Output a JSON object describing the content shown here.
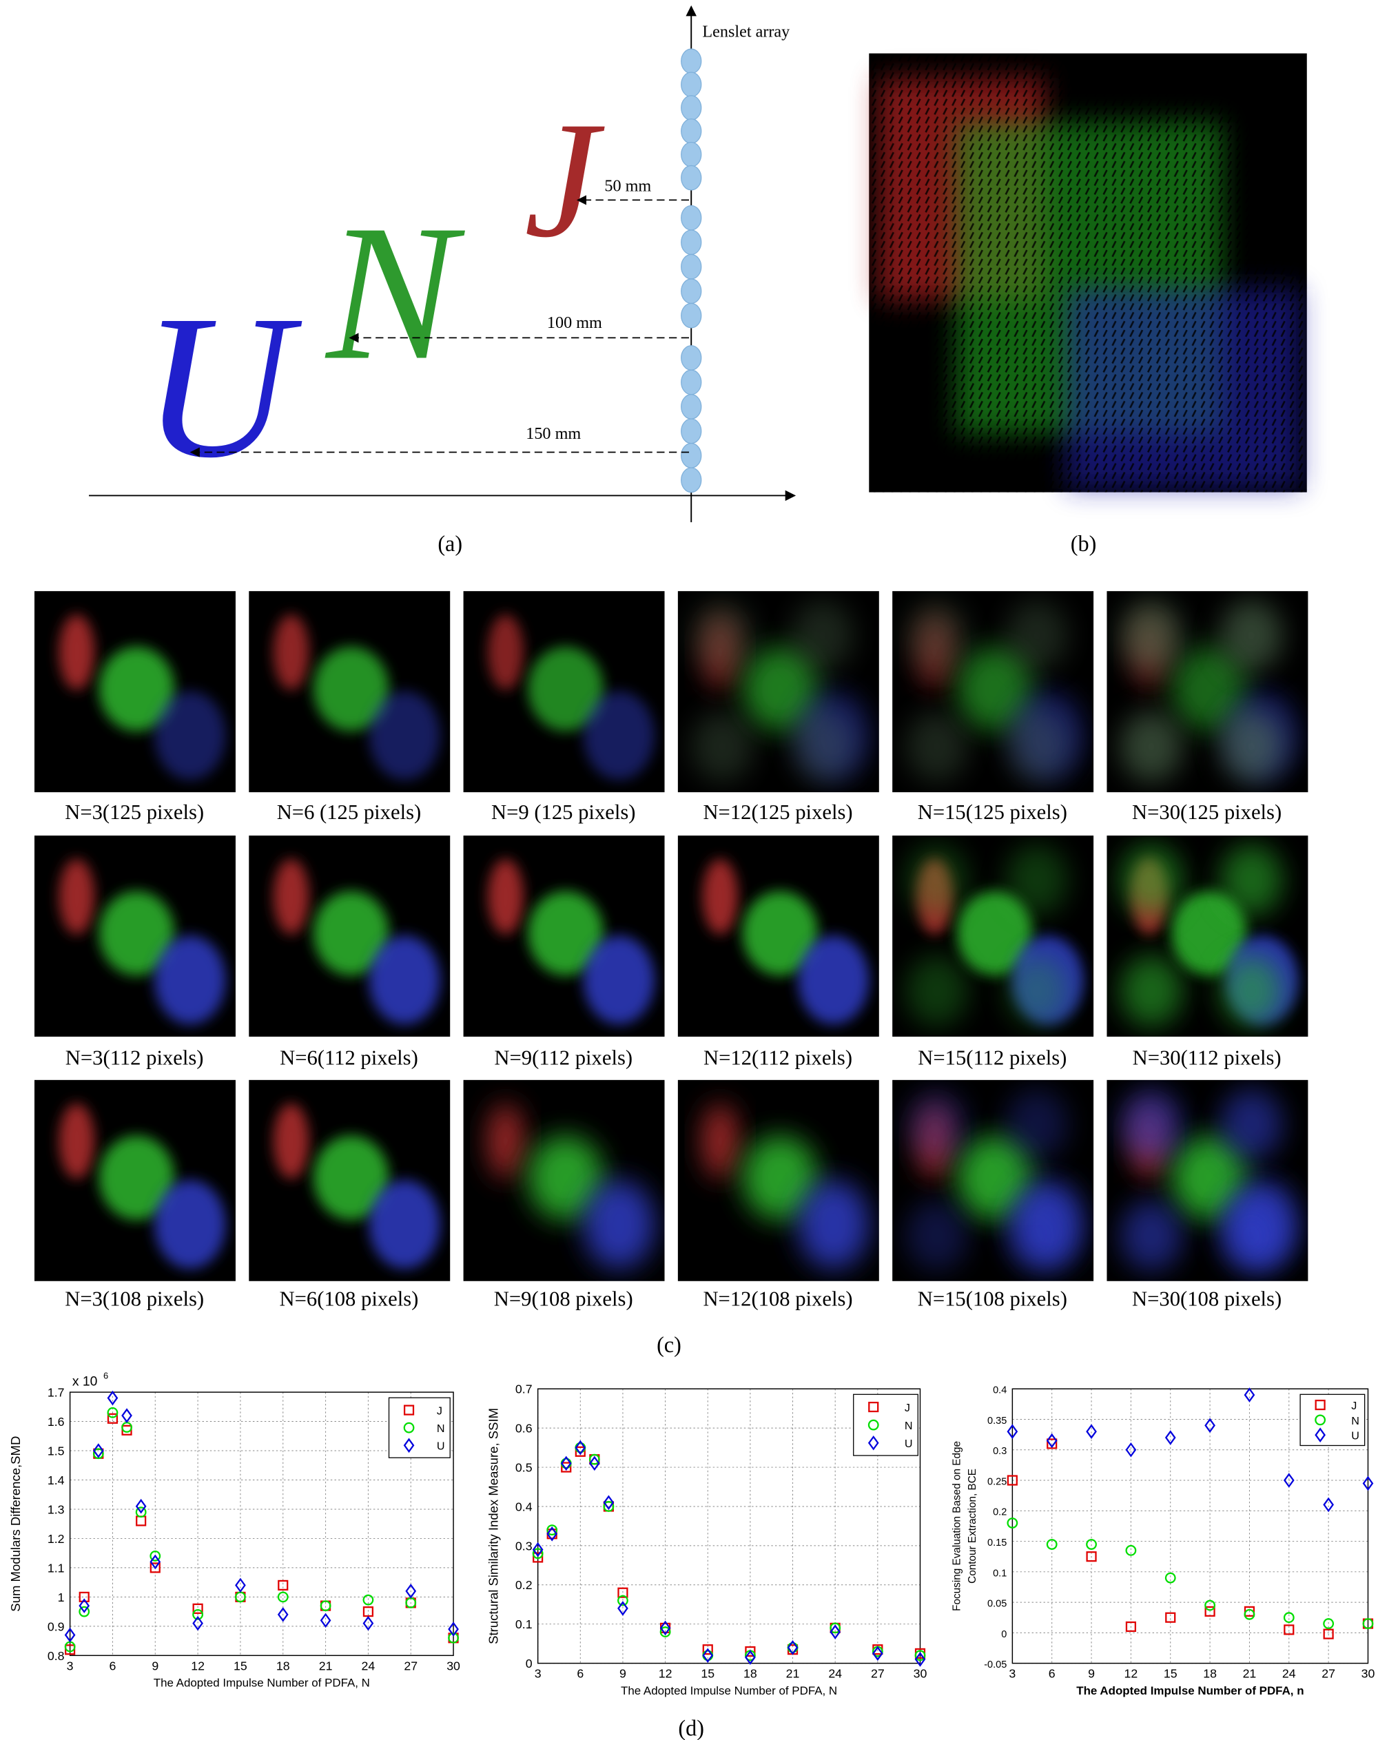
{
  "panel_a": {
    "axis_label": "Lenslet array",
    "letters": [
      "J",
      "N",
      "U"
    ],
    "distances": [
      "50 mm",
      "100 mm",
      "150 mm"
    ]
  },
  "panel_labels": [
    "(a)",
    "(b)",
    "(c)",
    "(d)"
  ],
  "panel_c": {
    "captions": [
      [
        "N=3(125 pixels)",
        "N=6 (125 pixels)",
        "N=9 (125 pixels)",
        "N=12(125 pixels)",
        "N=15(125 pixels)",
        "N=30(125 pixels)"
      ],
      [
        "N=3(112 pixels)",
        "N=6(112 pixels)",
        "N=9(112 pixels)",
        "N=12(112 pixels)",
        "N=15(112 pixels)",
        "N=30(112 pixels)"
      ],
      [
        "N=3(108 pixels)",
        "N=6(108 pixels)",
        "N=9(108 pixels)",
        "N=12(108 pixels)",
        "N=15(108 pixels)",
        "N=30(108 pixels)"
      ]
    ]
  },
  "chart_data": [
    {
      "type": "scatter",
      "ylabel": [
        "Sum Modulars Difference,SMD"
      ],
      "xlabel": "The Adopted Impulse Number of PDFA, N",
      "y_multiplier": "x 10",
      "y_multiplier_exp": "6",
      "x": [
        3,
        4,
        5,
        6,
        7,
        8,
        9,
        12,
        15,
        18,
        21,
        24,
        27,
        30
      ],
      "series": [
        {
          "name": "J",
          "color": "#e00000",
          "marker": "square",
          "values": [
            0.82,
            1.0,
            1.49,
            1.61,
            1.57,
            1.26,
            1.1,
            0.96,
            1.0,
            1.04,
            0.97,
            0.95,
            0.98,
            0.86
          ]
        },
        {
          "name": "N",
          "color": "#00dd00",
          "marker": "circle",
          "values": [
            0.83,
            0.95,
            1.49,
            1.63,
            1.58,
            1.29,
            1.14,
            0.94,
            1.0,
            1.0,
            0.97,
            0.99,
            0.98,
            0.86
          ]
        },
        {
          "name": "U",
          "color": "#0000dd",
          "marker": "diamond",
          "values": [
            0.87,
            0.97,
            1.5,
            1.68,
            1.62,
            1.31,
            1.12,
            0.91,
            1.04,
            0.94,
            0.92,
            0.91,
            1.02,
            0.89
          ]
        }
      ],
      "xlim": [
        3,
        30
      ],
      "ylim": [
        0.8,
        1.7
      ],
      "xticks": [
        3,
        6,
        9,
        12,
        15,
        18,
        21,
        24,
        27,
        30
      ],
      "yticks": [
        0.8,
        0.9,
        1,
        1.1,
        1.2,
        1.3,
        1.4,
        1.5,
        1.6,
        1.7
      ],
      "grid": true,
      "legend": "upper right"
    },
    {
      "type": "scatter",
      "ylabel": [
        "Structural Similarity Index Measure, SSIM"
      ],
      "xlabel": "The Adopted Impulse Number of PDFA, N",
      "x": [
        3,
        4,
        5,
        6,
        7,
        8,
        9,
        12,
        15,
        18,
        21,
        24,
        27,
        30
      ],
      "series": [
        {
          "name": "J",
          "color": "#e00000",
          "marker": "square",
          "values": [
            0.27,
            0.33,
            0.5,
            0.54,
            0.52,
            0.4,
            0.18,
            0.09,
            0.035,
            0.03,
            0.035,
            0.09,
            0.035,
            0.025
          ]
        },
        {
          "name": "N",
          "color": "#00dd00",
          "marker": "circle",
          "values": [
            0.28,
            0.34,
            0.51,
            0.55,
            0.52,
            0.4,
            0.16,
            0.08,
            0.02,
            0.02,
            0.04,
            0.09,
            0.03,
            0.02
          ]
        },
        {
          "name": "U",
          "color": "#0000dd",
          "marker": "diamond",
          "values": [
            0.29,
            0.33,
            0.51,
            0.55,
            0.51,
            0.41,
            0.14,
            0.09,
            0.02,
            0.015,
            0.04,
            0.08,
            0.025,
            0.01
          ]
        }
      ],
      "xlim": [
        3,
        30
      ],
      "ylim": [
        0,
        0.7
      ],
      "xticks": [
        3,
        6,
        9,
        12,
        15,
        18,
        21,
        24,
        27,
        30
      ],
      "yticks": [
        0,
        0.1,
        0.2,
        0.3,
        0.4,
        0.5,
        0.6,
        0.7
      ],
      "grid": true,
      "legend": "upper right"
    },
    {
      "type": "scatter",
      "ylabel": [
        "Focusing Evaluation Based on Edge",
        "Contour Extraction, BCE"
      ],
      "xlabel": "The Adopted Impulse Number of PDFA, n",
      "x": [
        3,
        6,
        9,
        12,
        15,
        18,
        21,
        24,
        27,
        30
      ],
      "series": [
        {
          "name": "J",
          "color": "#e00000",
          "marker": "square",
          "values": [
            0.25,
            0.31,
            0.125,
            0.01,
            0.025,
            0.035,
            0.035,
            0.005,
            -0.002,
            0.015
          ]
        },
        {
          "name": "N",
          "color": "#00dd00",
          "marker": "circle",
          "values": [
            0.18,
            0.145,
            0.145,
            0.135,
            0.09,
            0.045,
            0.03,
            0.025,
            0.015,
            0.015
          ]
        },
        {
          "name": "U",
          "color": "#0000dd",
          "marker": "diamond",
          "values": [
            0.33,
            0.315,
            0.33,
            0.3,
            0.32,
            0.34,
            0.39,
            0.25,
            0.21,
            0.245
          ]
        }
      ],
      "xlim": [
        3,
        30
      ],
      "ylim": [
        -0.05,
        0.4
      ],
      "xticks": [
        3,
        6,
        9,
        12,
        15,
        18,
        21,
        24,
        27,
        30
      ],
      "yticks": [
        -0.05,
        0,
        0.05,
        0.1,
        0.15,
        0.2,
        0.25,
        0.3,
        0.35,
        0.4
      ],
      "grid": true,
      "legend": "upper right"
    }
  ]
}
